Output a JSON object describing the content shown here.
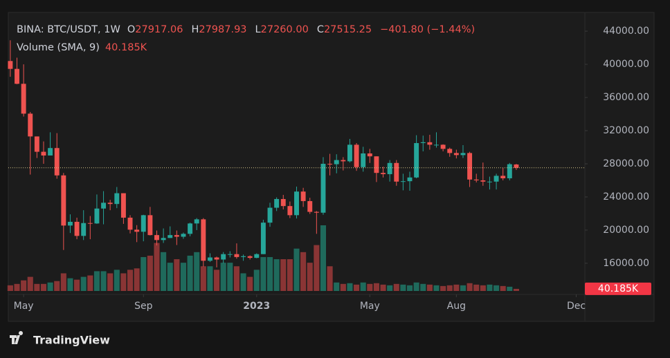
{
  "header": {
    "symbol": "BINA: BTC/USDT, 1W",
    "fields": [
      {
        "key": "O",
        "value": "27917.06"
      },
      {
        "key": "H",
        "value": "27987.93"
      },
      {
        "key": "L",
        "value": "27260.00"
      },
      {
        "key": "C",
        "value": "27515.25"
      }
    ],
    "change": "−401.80 (−1.44%)",
    "volume_name": "Volume (SMA, 9)"
  },
  "brand": "TradingView",
  "chart_data": {
    "type": "candlestick",
    "open": [
      40400,
      39450,
      37650,
      34050,
      31300,
      29450,
      29000,
      29900,
      26600,
      20550,
      21000,
      19300,
      20850,
      20800,
      22600,
      23300,
      23150,
      24450,
      21500,
      20050,
      19800,
      21800,
      19400,
      18800,
      19050,
      19400,
      19200,
      19550,
      20800,
      21300,
      16300,
      16700,
      16450,
      17100,
      17100,
      16750,
      16850,
      16650,
      17100,
      20900,
      22700,
      23750,
      22900,
      21800,
      24650,
      23500,
      22200,
      22100,
      28000,
      27950,
      28450,
      28300,
      30300,
      27600,
      29250,
      28900,
      26900,
      26750,
      28100,
      25850,
      25900,
      26350,
      30500,
      30600,
      30300,
      30300,
      29800,
      29300,
      29050,
      29300,
      26100,
      26000,
      25850,
      25850,
      26550,
      26250,
      27917.06
    ],
    "high": [
      42900,
      40800,
      40000,
      34250,
      31300,
      30700,
      31800,
      31700,
      26900,
      21900,
      21500,
      22400,
      21700,
      24300,
      24700,
      23650,
      25200,
      24450,
      21800,
      20600,
      21850,
      22800,
      19950,
      20200,
      20450,
      19950,
      19700,
      20900,
      21450,
      21450,
      17200,
      16800,
      17350,
      17450,
      18400,
      17050,
      16950,
      17200,
      21250,
      23300,
      23950,
      24250,
      23450,
      25250,
      25100,
      23900,
      22300,
      28800,
      29200,
      29150,
      28800,
      31000,
      30500,
      30050,
      29800,
      28900,
      27650,
      28450,
      28450,
      26800,
      27050,
      31450,
      31400,
      31500,
      31800,
      30350,
      29950,
      29700,
      30250,
      29450,
      26800,
      28150,
      26450,
      26800,
      27500,
      28100,
      27987.93
    ],
    "low": [
      38500,
      37600,
      33700,
      26700,
      28700,
      28000,
      29000,
      26200,
      17600,
      19650,
      18900,
      18800,
      18900,
      20750,
      20700,
      22400,
      22650,
      20750,
      19600,
      18550,
      18650,
      19350,
      18150,
      18450,
      19050,
      18200,
      18950,
      19250,
      20000,
      15600,
      16150,
      15500,
      16000,
      16700,
      16550,
      16300,
      16450,
      16600,
      17100,
      20400,
      22300,
      22500,
      21450,
      21400,
      22800,
      21950,
      19550,
      21850,
      26600,
      26850,
      27200,
      28150,
      27150,
      27050,
      28100,
      25800,
      26350,
      25850,
      25350,
      24800,
      24750,
      26250,
      29500,
      29700,
      29950,
      29500,
      28850,
      28650,
      28700,
      25200,
      25750,
      25350,
      24900,
      24900,
      26000,
      26000,
      27260
    ],
    "close": [
      39450,
      37650,
      34050,
      31300,
      29450,
      29000,
      29900,
      26600,
      20550,
      21000,
      19300,
      20850,
      20800,
      22600,
      23300,
      23150,
      24450,
      21500,
      20050,
      19800,
      21800,
      19400,
      18800,
      19050,
      19400,
      19200,
      19550,
      20800,
      21300,
      16300,
      16700,
      16450,
      17100,
      17100,
      16750,
      16850,
      16650,
      17100,
      20900,
      22700,
      23750,
      22900,
      21800,
      24650,
      23500,
      22200,
      22100,
      28000,
      27950,
      28450,
      28300,
      30300,
      27600,
      29250,
      28900,
      26900,
      26750,
      28100,
      25850,
      25900,
      26350,
      30500,
      30600,
      30300,
      30300,
      29800,
      29300,
      29050,
      29300,
      26100,
      26000,
      25850,
      25850,
      26550,
      26250,
      27950,
      27515.25
    ],
    "volume": [
      107200,
      134000,
      201000,
      268000,
      134000,
      134000,
      160800,
      187600,
      335000,
      241200,
      214400,
      268000,
      294800,
      375200,
      375200,
      335000,
      402000,
      335000,
      402000,
      428800,
      643200,
      670000,
      911200,
      737000,
      536000,
      603000,
      536000,
      670000,
      737000,
      469000,
      469000,
      402000,
      536000,
      536000,
      469000,
      335000,
      268000,
      402000,
      643200,
      643200,
      603000,
      603000,
      603000,
      804000,
      737000,
      536000,
      871000,
      1246200,
      469000,
      160800,
      134000,
      147400,
      120600,
      160800,
      134000,
      147400,
      120600,
      107200,
      134000,
      120600,
      107200,
      160800,
      134000,
      120600,
      107200,
      93800,
      107200,
      120600,
      107200,
      147400,
      120600,
      107200,
      120600,
      107200,
      93800,
      80400,
      40185
    ],
    "volume_label": "40.185K",
    "up_color": "#26a69a",
    "down_color": "#ef5350",
    "volume_up_color": "#1f6a5c",
    "volume_down_color": "#8a3535",
    "price_line_color": "#d6c58a",
    "ylim": [
      12240,
      46260
    ],
    "yticks": [
      {
        "value": 16000,
        "label": "16000.00"
      },
      {
        "value": 20000,
        "label": "20000.00"
      },
      {
        "value": 24000,
        "label": "24000.00"
      },
      {
        "value": 28000,
        "label": "28000.00"
      },
      {
        "value": 32000,
        "label": "32000.00"
      },
      {
        "value": 36000,
        "label": "36000.00"
      },
      {
        "value": 40000,
        "label": "40000.00"
      },
      {
        "value": 44000,
        "label": "44000.00"
      }
    ],
    "xlim": [
      -0.3,
      86.3
    ],
    "xticks": [
      {
        "value": 2,
        "label": "May"
      },
      {
        "value": 20,
        "label": "Sep"
      },
      {
        "value": 37,
        "label": "2023",
        "bold": true
      },
      {
        "value": 54,
        "label": "May"
      },
      {
        "value": 67,
        "label": "Aug"
      },
      {
        "value": 85,
        "label": "Dec"
      }
    ]
  }
}
